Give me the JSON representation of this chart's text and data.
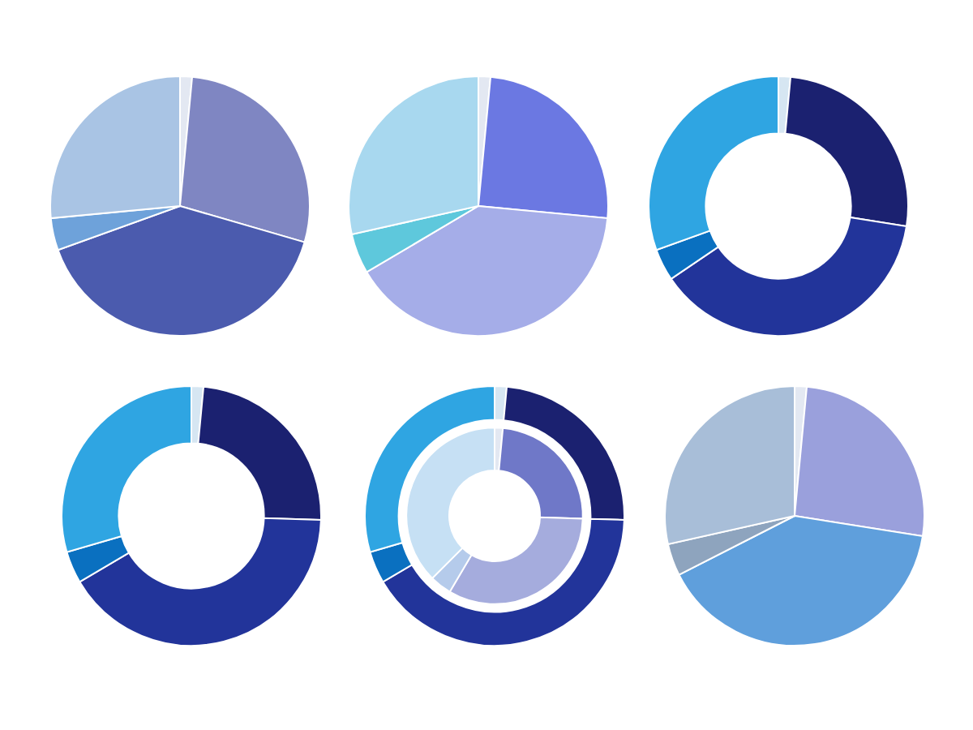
{
  "chart_data": [
    {
      "type": "pie",
      "categories": [
        null,
        null,
        null,
        null,
        null
      ],
      "values": [
        1.5,
        28,
        40,
        4,
        26.5
      ],
      "colors": [
        "#e3e8f2",
        "#7f86c2",
        "#4b5bae",
        "#6ea2da",
        "#a9c4e4"
      ]
    },
    {
      "type": "pie",
      "categories": [
        null,
        null,
        null,
        null,
        null
      ],
      "values": [
        1.5,
        25,
        40,
        5,
        28.5
      ],
      "colors": [
        "#e3e8f2",
        "#6b78e2",
        "#a5ade8",
        "#5ec8dc",
        "#a8d8ef"
      ]
    },
    {
      "type": "donut",
      "categories": [
        null,
        null,
        null,
        null,
        null
      ],
      "values": [
        1.5,
        26,
        38,
        4,
        30.5
      ],
      "colors": [
        "#d6e6f2",
        "#1b2170",
        "#22349a",
        "#0a70c0",
        "#2fa5e2"
      ]
    },
    {
      "type": "donut",
      "categories": [
        null,
        null,
        null,
        null,
        null
      ],
      "values": [
        1.5,
        24,
        41,
        4,
        29.5
      ],
      "colors": [
        "#d6e6f2",
        "#1b2170",
        "#22349a",
        "#0a70c0",
        "#2fa5e2"
      ]
    },
    {
      "type": "donut",
      "categories": [
        null,
        null,
        null,
        null,
        null
      ],
      "series": [
        {
          "values": [
            1.5,
            24,
            41,
            4,
            29.5
          ],
          "colors": [
            "#d6e6f2",
            "#1b2170",
            "#22349a",
            "#0a70c0",
            "#2fa5e2"
          ]
        },
        {
          "values": [
            1.5,
            24,
            33,
            4,
            37.5
          ],
          "colors": [
            "#e3e8f2",
            "#6f78c8",
            "#a5acdd",
            "#b5cbeb",
            "#c6e0f4"
          ]
        }
      ]
    },
    {
      "type": "pie",
      "categories": [
        null,
        null,
        null,
        null,
        null
      ],
      "values": [
        1.5,
        26,
        40,
        4,
        28.5
      ],
      "colors": [
        "#e3e8f2",
        "#9aa0dc",
        "#5f9fdc",
        "#8ea4be",
        "#a8bed8"
      ]
    }
  ]
}
